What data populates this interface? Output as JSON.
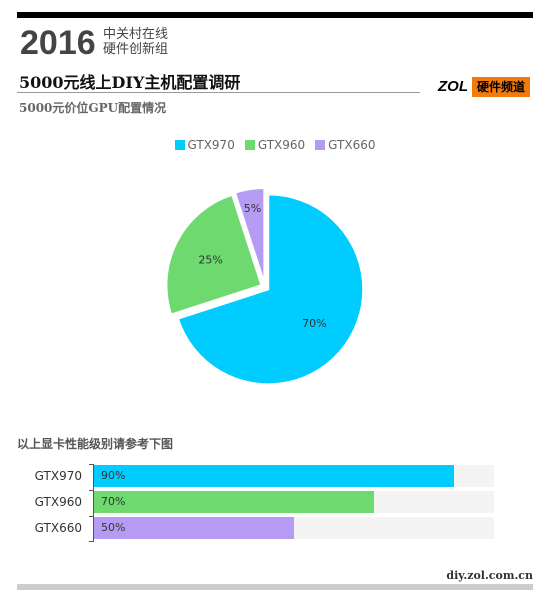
{
  "header": {
    "year": "2016",
    "org_line1": "中关村在线",
    "org_line2": "硬件创新组",
    "title": "5000元线上DIY主机配置调研",
    "subtitle": "5000元价位GPU配置情况",
    "brand_zol": "ZOL",
    "brand_channel": "硬件频道"
  },
  "colors": {
    "GTX970": "#00ccff",
    "GTX960": "#6dd96f",
    "GTX660": "#b69bf5",
    "brand_orange": "#f47a0c"
  },
  "chart_data": [
    {
      "type": "pie",
      "title": "5000元价位GPU配置情况",
      "legend_position": "top-center",
      "slices": [
        {
          "name": "GTX970",
          "value": 70,
          "label": "70%"
        },
        {
          "name": "GTX960",
          "value": 25,
          "label": "25%"
        },
        {
          "name": "GTX660",
          "value": 5,
          "label": "5%"
        }
      ]
    },
    {
      "type": "bar",
      "orientation": "horizontal",
      "title": "以上显卡性能级别请参考下图",
      "categories": [
        "GTX970",
        "GTX960",
        "GTX660"
      ],
      "values": [
        90,
        70,
        50
      ],
      "value_labels": [
        "90%",
        "70%",
        "50%"
      ],
      "xlim": [
        0,
        100
      ]
    }
  ],
  "footer": {
    "url": "diy.zol.com.cn"
  }
}
